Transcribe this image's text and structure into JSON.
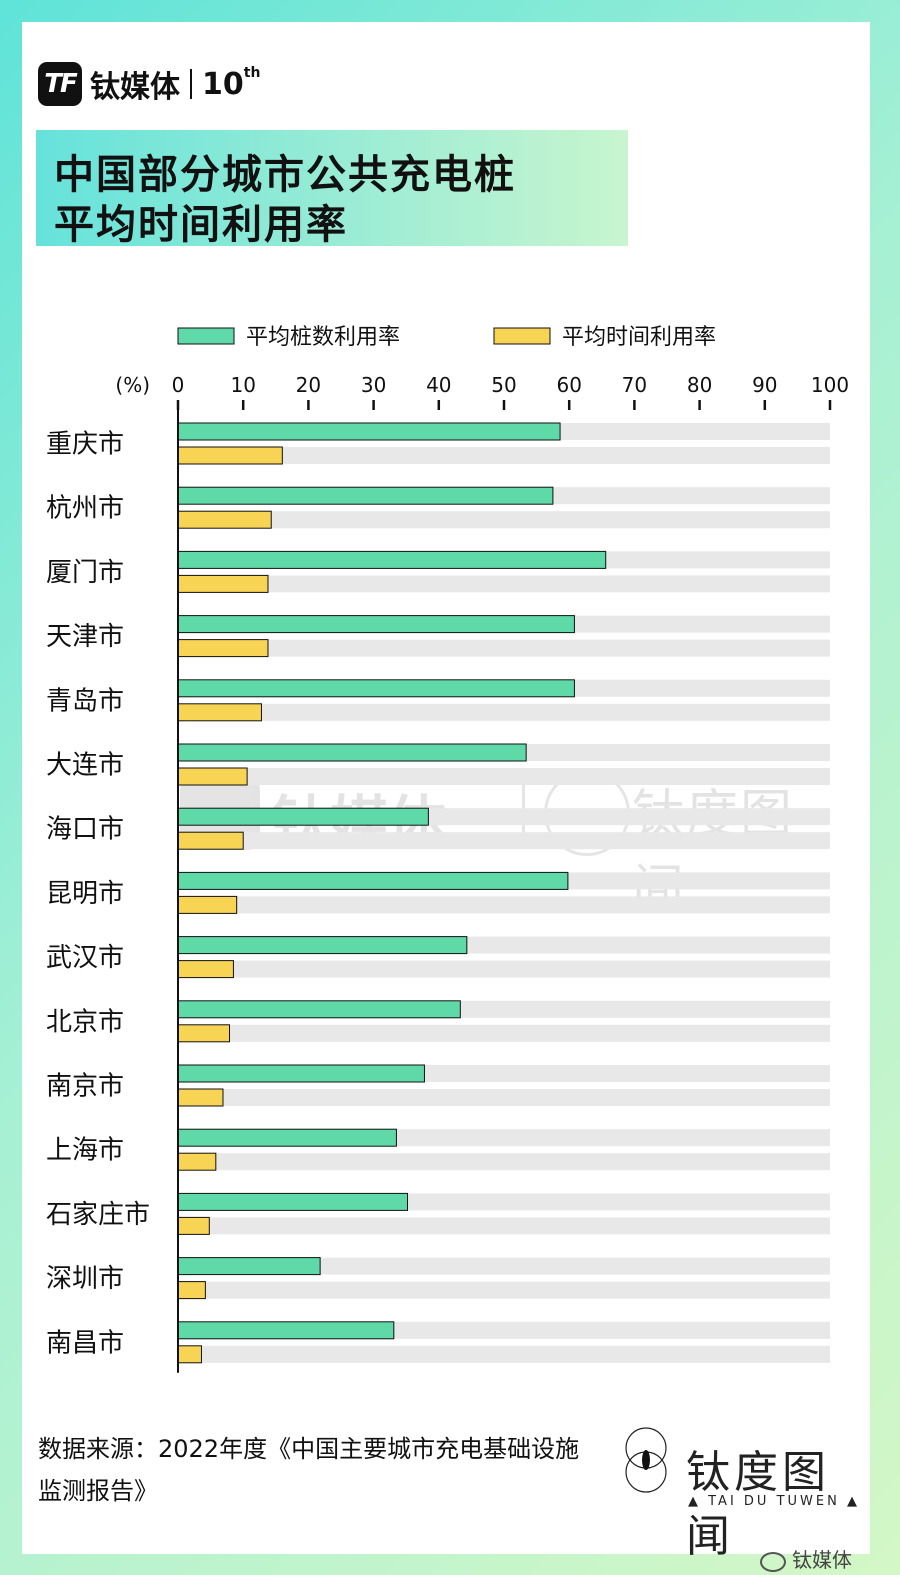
{
  "brand": {
    "name": "钛媒体",
    "ten": "10",
    "ten_sup": "th"
  },
  "title": {
    "line1": "中国部分城市公共充电桩",
    "line2": "平均时间利用率"
  },
  "source": {
    "line1": "数据来源：2022年度《中国主要城市充电基础设施",
    "line2": "监测报告》"
  },
  "footer_brand": {
    "name": "钛度图闻",
    "sub": "▲ TAI DU TUWEN ▲"
  },
  "watermark": {
    "brand": "钛媒体",
    "name": "钛度图闻",
    "sub": "▲ TAI DU TUWEN ▲"
  },
  "wechat": {
    "label": "钛媒体"
  },
  "colors": {
    "green": "#5fd9a7",
    "yellow": "#f7d454",
    "track": "#e8e8e8",
    "axis": "#111111"
  },
  "chart_data": {
    "type": "bar",
    "orientation": "horizontal",
    "unit_label": "(%)",
    "xlim": [
      0,
      100
    ],
    "ticks": [
      0,
      10,
      20,
      30,
      40,
      50,
      60,
      70,
      80,
      90,
      100
    ],
    "legend_position": "top",
    "categories": [
      "重庆市",
      "杭州市",
      "厦门市",
      "天津市",
      "青岛市",
      "大连市",
      "海口市",
      "昆明市",
      "武汉市",
      "北京市",
      "南京市",
      "上海市",
      "石家庄市",
      "深圳市",
      "南昌市"
    ],
    "series": [
      {
        "name": "平均桩数利用率",
        "color": "#5fd9a7",
        "values": [
          58.6,
          57.5,
          65.6,
          60.8,
          60.8,
          53.4,
          38.4,
          59.8,
          44.3,
          43.3,
          37.8,
          33.5,
          35.2,
          21.8,
          33.1
        ]
      },
      {
        "name": "平均时间利用率",
        "color": "#f7d454",
        "values": [
          16.0,
          14.3,
          13.8,
          13.8,
          12.8,
          10.6,
          10.0,
          9.0,
          8.5,
          7.9,
          6.9,
          5.8,
          4.8,
          4.2,
          3.6
        ]
      }
    ]
  }
}
